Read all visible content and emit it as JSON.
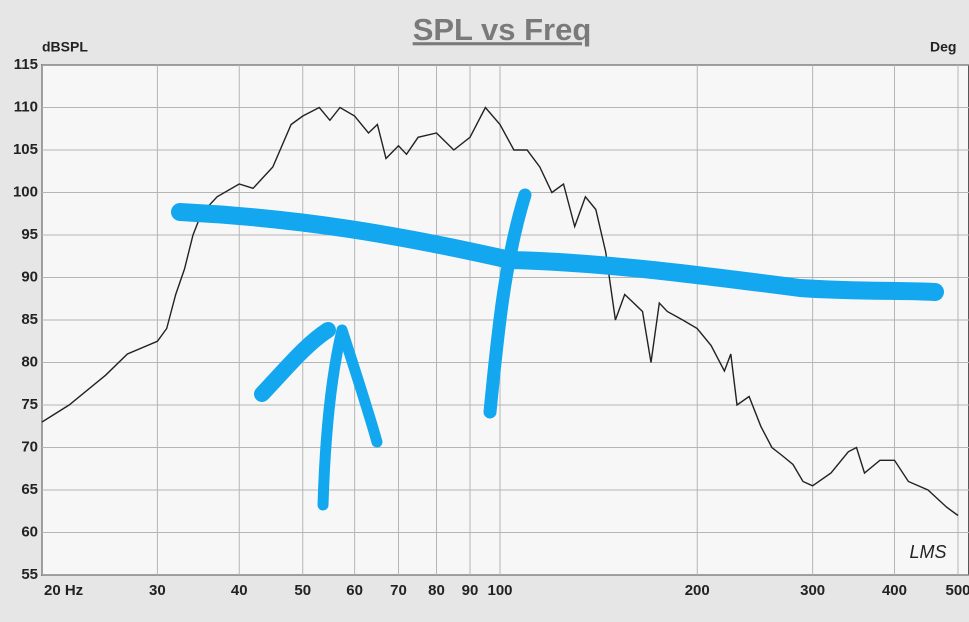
{
  "chart_data": {
    "type": "line",
    "title": "SPL vs Freq",
    "y_label": "dBSPL",
    "y2_label": "Deg",
    "logo": "LMS",
    "x_scale": "log",
    "grid": true,
    "xlim": [
      20,
      500
    ],
    "ylim": [
      55,
      115
    ],
    "xticks": [
      {
        "value": 20,
        "label": "20  Hz"
      },
      30,
      40,
      50,
      60,
      70,
      80,
      90,
      100,
      200,
      300,
      400,
      500
    ],
    "yticks": [
      55,
      60,
      65,
      70,
      75,
      80,
      85,
      90,
      95,
      100,
      105,
      110,
      115
    ],
    "series": [
      {
        "color": "#222222",
        "x": [
          20,
          22,
          25,
          27,
          30,
          31,
          32,
          33,
          34,
          35,
          37,
          40,
          42,
          45,
          48,
          50,
          53,
          55,
          57,
          60,
          63,
          65,
          67,
          70,
          72,
          75,
          80,
          85,
          90,
          95,
          100,
          105,
          110,
          115,
          120,
          125,
          130,
          135,
          140,
          145,
          150,
          155,
          160,
          165,
          170,
          175,
          180,
          190,
          200,
          210,
          220,
          225,
          230,
          240,
          250,
          260,
          270,
          280,
          290,
          300,
          320,
          340,
          350,
          360,
          380,
          400,
          420,
          450,
          480,
          500
        ],
        "values": [
          73,
          75,
          78.5,
          81,
          82.5,
          84,
          88,
          91,
          95,
          97.5,
          99.5,
          101,
          100.5,
          103,
          108,
          109,
          110,
          108.5,
          110,
          109,
          107,
          108,
          104,
          105.5,
          104.5,
          106.5,
          107,
          105,
          106.5,
          110,
          108,
          105,
          105,
          103,
          100,
          101,
          96,
          99.5,
          98,
          93,
          85,
          88,
          87,
          86,
          80,
          87,
          86,
          85,
          84,
          82,
          79,
          81,
          75,
          76,
          72.5,
          70,
          69,
          68,
          66,
          65.5,
          67,
          69.5,
          70,
          67,
          68.5,
          68.5,
          66,
          65,
          63,
          62
        ]
      }
    ]
  }
}
